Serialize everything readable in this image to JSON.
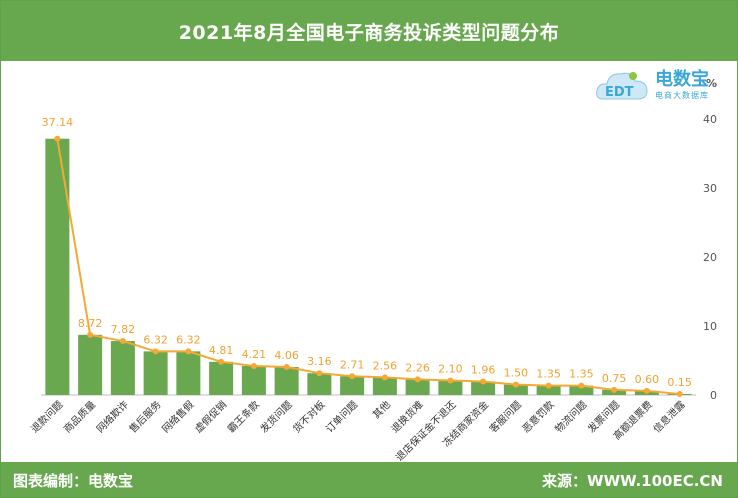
{
  "header": {
    "title": "2021年8月全国电子商务投诉类型问题分布"
  },
  "logo": {
    "brand": "电数宝",
    "tagline": "电商大数据库",
    "mark": "EDT"
  },
  "footer": {
    "left": "图表编制：电数宝",
    "right": "来源：WWW.100EC.CN"
  },
  "chart_data": {
    "type": "bar",
    "title": "2021年8月全国电子商务投诉类型问题分布",
    "categories": [
      "退款问题",
      "商品质量",
      "网络欺诈",
      "售后服务",
      "网络售假",
      "虚假促销",
      "霸王条款",
      "发货问题",
      "货不对板",
      "订单问题",
      "其他",
      "退换货难",
      "退店保证金不退还",
      "冻结商家资金",
      "客服问题",
      "恶意罚款",
      "物流问题",
      "发票问题",
      "高额退票费",
      "信息泄露"
    ],
    "series": [
      {
        "type": "bar",
        "values": [
          37.14,
          8.72,
          7.82,
          6.32,
          6.32,
          4.81,
          4.21,
          4.06,
          3.16,
          2.71,
          2.56,
          2.26,
          2.1,
          1.96,
          1.5,
          1.35,
          1.35,
          0.75,
          0.6,
          0.15
        ]
      },
      {
        "type": "line",
        "values": [
          37.14,
          8.72,
          7.82,
          6.32,
          6.32,
          4.81,
          4.21,
          4.06,
          3.16,
          2.71,
          2.56,
          2.26,
          2.1,
          1.96,
          1.5,
          1.35,
          1.35,
          0.75,
          0.6,
          0.15
        ]
      }
    ],
    "value_labels": [
      "37.14",
      "8.72",
      "7.82",
      "6.32",
      "6.32",
      "4.81",
      "4.21",
      "4.06",
      "3.16",
      "2.71",
      "2.56",
      "2.26",
      "2.10",
      "1.96",
      "1.50",
      "1.35",
      "1.35",
      "0.75",
      "0.60",
      "0.15"
    ],
    "unit": "%",
    "y_ticks": [
      "0",
      "10",
      "20",
      "30",
      "40"
    ],
    "ylim": [
      0,
      40
    ],
    "y_axis_side": "right",
    "grid": false,
    "colors": {
      "bar": "#6aa84f",
      "line": "#f5a833",
      "header": "#67a84f"
    }
  }
}
